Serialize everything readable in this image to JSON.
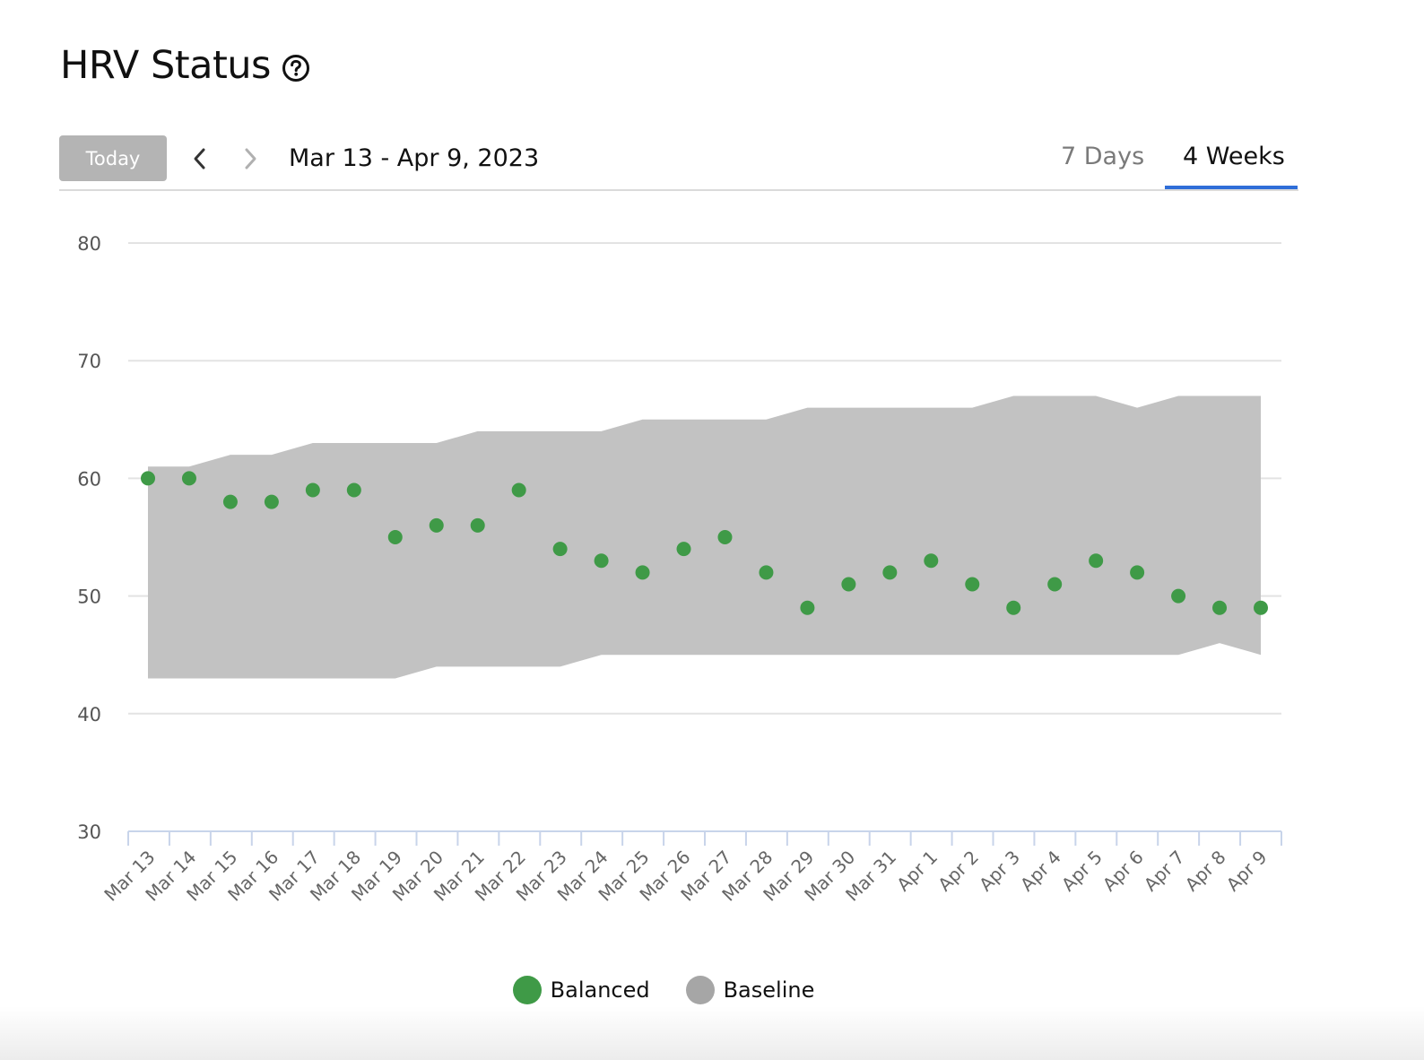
{
  "page": {
    "title": "HRV Status",
    "help_icon": "question-circle-icon"
  },
  "toolbar": {
    "today_label": "Today",
    "prev_icon": "chevron-left-icon",
    "next_icon": "chevron-right-icon",
    "date_range": "Mar 13 - Apr 9, 2023",
    "tabs": [
      {
        "label": "7 Days",
        "active": false
      },
      {
        "label": "4 Weeks",
        "active": true
      }
    ]
  },
  "colors": {
    "balanced": "#3f9a47",
    "baseline": "#c2c2c2",
    "legend_baseline": "#a6a6a6",
    "accent": "#2f6ed8",
    "grid": "#e3e3e3",
    "axis": "#c8d4ea"
  },
  "chart_data": {
    "type": "scatter",
    "title": "",
    "xlabel": "",
    "ylabel": "",
    "ylim": [
      30,
      80
    ],
    "yticks": [
      30,
      40,
      50,
      60,
      70,
      80
    ],
    "grid": true,
    "legend_placement": "bottom-center",
    "categories": [
      "Mar 13",
      "Mar 14",
      "Mar 15",
      "Mar 16",
      "Mar 17",
      "Mar 18",
      "Mar 19",
      "Mar 20",
      "Mar 21",
      "Mar 22",
      "Mar 23",
      "Mar 24",
      "Mar 25",
      "Mar 26",
      "Mar 27",
      "Mar 28",
      "Mar 29",
      "Mar 30",
      "Mar 31",
      "Apr 1",
      "Apr 2",
      "Apr 3",
      "Apr 4",
      "Apr 5",
      "Apr 6",
      "Apr 7",
      "Apr 8",
      "Apr 9"
    ],
    "series": [
      {
        "name": "Balanced",
        "type": "scatter",
        "values": [
          60,
          60,
          58,
          58,
          59,
          59,
          55,
          56,
          56,
          59,
          54,
          53,
          52,
          54,
          55,
          52,
          49,
          51,
          52,
          53,
          51,
          49,
          51,
          53,
          52,
          50,
          49,
          49
        ]
      },
      {
        "name": "Baseline",
        "type": "area-range",
        "low": [
          43,
          43,
          43,
          43,
          43,
          43,
          43,
          44,
          44,
          44,
          44,
          45,
          45,
          45,
          45,
          45,
          45,
          45,
          45,
          45,
          45,
          45,
          45,
          45,
          45,
          45,
          46,
          45
        ],
        "high": [
          61,
          61,
          62,
          62,
          63,
          63,
          63,
          63,
          64,
          64,
          64,
          64,
          65,
          65,
          65,
          65,
          66,
          66,
          66,
          66,
          66,
          67,
          67,
          67,
          66,
          67,
          67,
          67
        ]
      }
    ]
  },
  "legend": {
    "items": [
      {
        "label": "Balanced"
      },
      {
        "label": "Baseline"
      }
    ]
  }
}
